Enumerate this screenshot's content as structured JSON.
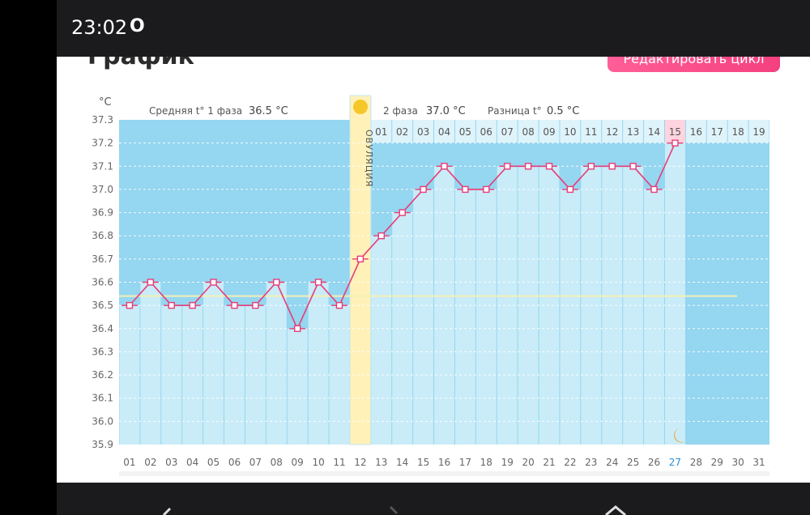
{
  "status_bar": {
    "time": "23:02",
    "indicator": "O"
  },
  "page": {
    "title": "График",
    "edit_button": "Редактировать цикл"
  },
  "legend": {
    "unit": "°C",
    "phase1_label": "Средняя t° 1 фаза",
    "phase1_value": "36.5 °C",
    "phase2_label": "2 фаза",
    "phase2_value": "37.0 °C",
    "diff_label": "Разница t°",
    "diff_value": "0.5 °C"
  },
  "ovulation_label": "ОВУЛЯЦИЯ",
  "colors": {
    "line": "#e83c78",
    "phase2_band": "#95d6f0",
    "ovulation": "#fff1b8",
    "column": "#c9ecf8",
    "today": "#ffd4df"
  },
  "icons": {
    "ovulation": "sun-icon",
    "current_day": "moon-icon"
  },
  "nav_bar": {
    "back": "back-icon",
    "home": "home-icon",
    "recent": "recent-icon"
  },
  "chart_data": {
    "type": "line",
    "ylabel": "°C",
    "ylim": [
      35.9,
      37.3
    ],
    "yticks": [
      "37.3",
      "37.2",
      "37.1",
      "37.0",
      "36.9",
      "36.8",
      "36.7",
      "36.6",
      "36.5",
      "36.4",
      "36.3",
      "36.2",
      "36.1",
      "36.0",
      "35.9"
    ],
    "cycle_days": [
      "01",
      "02",
      "03",
      "04",
      "05",
      "06",
      "07",
      "08",
      "09",
      "10",
      "11",
      "12",
      "13",
      "14",
      "15",
      "16",
      "17",
      "18",
      "19",
      "20",
      "21",
      "22",
      "23",
      "24",
      "25",
      "26",
      "27",
      "28",
      "29",
      "30",
      "31"
    ],
    "phase2_days": [
      "01",
      "02",
      "03",
      "04",
      "05",
      "06",
      "07",
      "08",
      "09",
      "10",
      "11",
      "12",
      "13",
      "14",
      "15",
      "16",
      "17",
      "18",
      "19"
    ],
    "values": [
      36.5,
      36.6,
      36.5,
      36.5,
      36.6,
      36.5,
      36.5,
      36.6,
      36.4,
      36.6,
      36.5,
      36.7,
      36.8,
      36.9,
      37.0,
      37.1,
      37.0,
      37.0,
      37.1,
      37.1,
      37.1,
      37.0,
      37.1,
      37.1,
      37.1,
      37.0,
      37.2
    ],
    "coverline": 36.54,
    "ovulation_day": "12",
    "current_day": "27"
  }
}
